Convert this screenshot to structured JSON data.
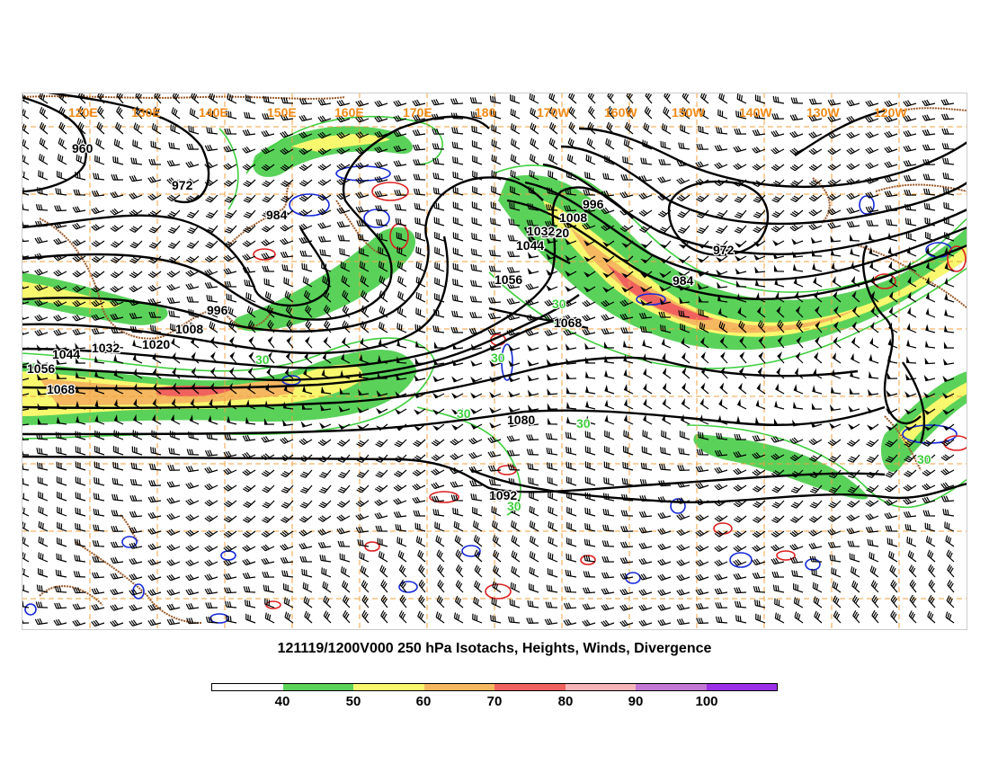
{
  "title": "121119/1200V000 250 hPa Isotachs, Heights, Winds, Divergence",
  "map": {
    "longitude_labels": [
      "120E",
      "130E",
      "140E",
      "150E",
      "160E",
      "170E",
      "180",
      "170W",
      "160W",
      "150W",
      "140W",
      "130W",
      "120W"
    ],
    "height_labels": [
      "960",
      "972",
      "984",
      "996",
      "1008",
      "1020",
      "1032",
      "1044",
      "1056",
      "1068",
      "1080",
      "1092",
      "996",
      "1008",
      "1020",
      "1032",
      "1044",
      "1056",
      "1068",
      "972",
      "984"
    ],
    "isotach_labels": [
      "30",
      "30",
      "30",
      "30",
      "30",
      "30",
      "30"
    ]
  },
  "colorbar": {
    "tick_labels": [
      "40",
      "50",
      "60",
      "70",
      "80",
      "90",
      "100"
    ],
    "colors": [
      "#ffffff",
      "#5ad25a",
      "#f8f86e",
      "#f5b860",
      "#f0625e",
      "#f4b4b8",
      "#c276d6",
      "#9c30e6"
    ]
  },
  "colors": {
    "heights": "#000000",
    "isotach_contour": "#3fcf3f",
    "coastline": "#9b5a2a",
    "graticule": "#f0a040",
    "divergence_positive": "#1428d8",
    "divergence_negative": "#dc1e1e"
  }
}
